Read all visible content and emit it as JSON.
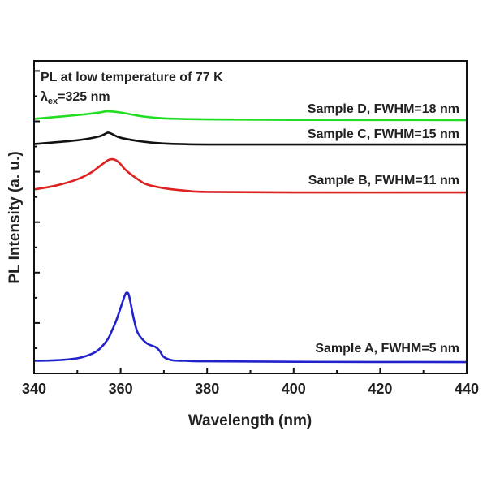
{
  "chart_data": {
    "type": "line",
    "title": "",
    "xlabel": "Wavelength (nm)",
    "ylabel": "PL Intensity (a. u.)",
    "xlim": [
      340,
      440
    ],
    "ylim": [
      0,
      12.4
    ],
    "xticks": [
      340,
      360,
      380,
      400,
      420,
      440
    ],
    "xtick_labels": [
      "340",
      "360",
      "380",
      "400",
      "420",
      "440"
    ],
    "yticks_unlabeled": [
      1,
      2,
      3,
      4,
      5,
      6,
      7,
      8,
      9,
      10,
      11,
      12
    ],
    "grid": false,
    "annotations": {
      "condition": "PL at low temperature of 77 K",
      "excitation_symbol": "λ",
      "excitation_sub": "ex",
      "excitation_value": "=325 nm"
    },
    "series": [
      {
        "name": "Sample D, FWHM=18 nm",
        "color": "#22dd22",
        "x": [
          340,
          350,
          355,
          357,
          360,
          365,
          370,
          380,
          400,
          440
        ],
        "y": [
          10.1,
          10.25,
          10.35,
          10.4,
          10.35,
          10.2,
          10.12,
          10.08,
          10.06,
          10.05
        ]
      },
      {
        "name": "Sample C, FWHM=15 nm",
        "color": "#111111",
        "x": [
          340,
          350,
          355,
          357,
          358,
          360,
          365,
          370,
          380,
          400,
          440
        ],
        "y": [
          9.1,
          9.25,
          9.4,
          9.55,
          9.5,
          9.35,
          9.2,
          9.12,
          9.08,
          9.08,
          9.08
        ]
      },
      {
        "name": "Sample B, FWHM=11 nm",
        "color": "#dd2222",
        "x": [
          340,
          345,
          350,
          353,
          355,
          357,
          358,
          359,
          360,
          361,
          362,
          364,
          366,
          370,
          375,
          380,
          400,
          440
        ],
        "y": [
          7.3,
          7.45,
          7.7,
          7.95,
          8.2,
          8.45,
          8.5,
          8.45,
          8.3,
          8.1,
          7.95,
          7.7,
          7.5,
          7.35,
          7.25,
          7.2,
          7.18,
          7.18
        ]
      },
      {
        "name": "Sample A, FWHM=5 nm",
        "color": "#2222cc",
        "x": [
          340,
          345,
          350,
          353,
          355,
          357,
          358,
          359,
          360,
          361,
          361.5,
          362,
          363,
          364,
          366,
          368,
          369,
          370,
          372,
          375,
          380,
          400,
          440
        ],
        "y": [
          0.5,
          0.52,
          0.6,
          0.75,
          0.95,
          1.35,
          1.7,
          2.1,
          2.6,
          3.1,
          3.2,
          3.05,
          2.2,
          1.6,
          1.2,
          1.05,
          0.9,
          0.65,
          0.52,
          0.5,
          0.48,
          0.46,
          0.45
        ]
      }
    ]
  }
}
